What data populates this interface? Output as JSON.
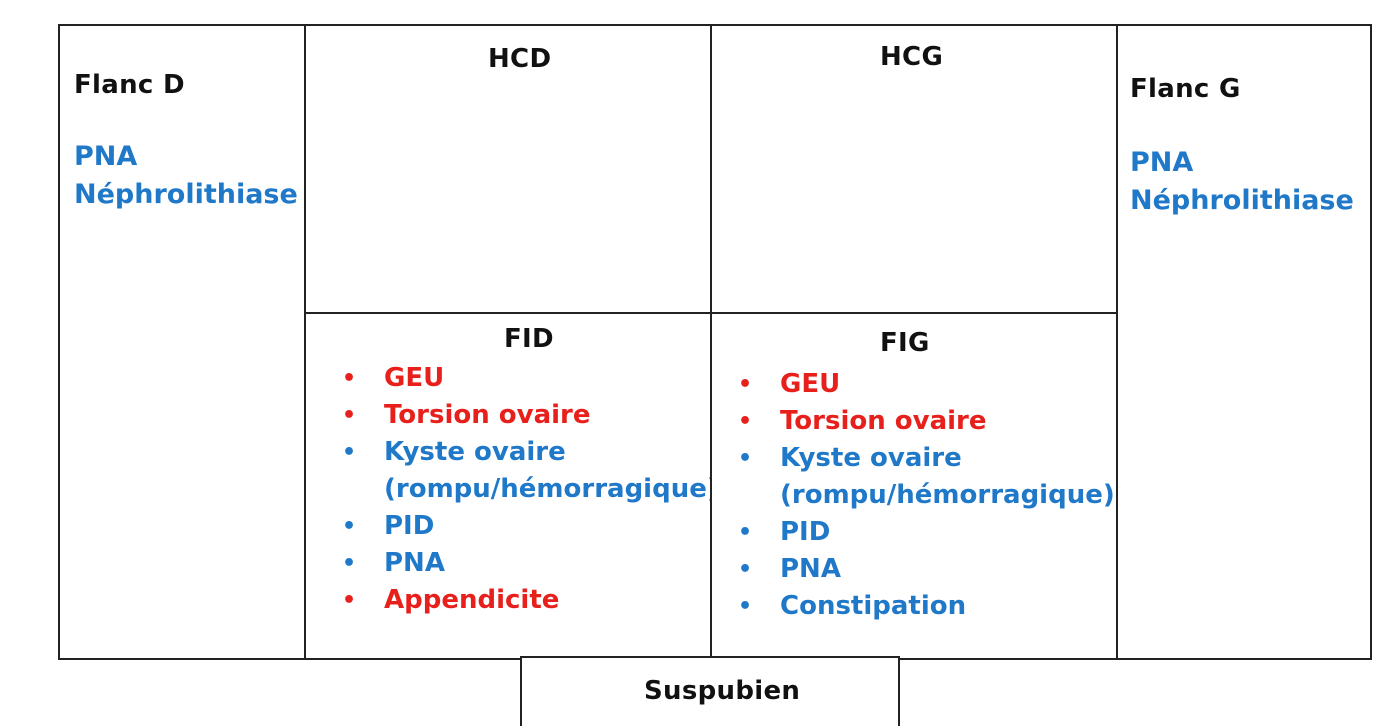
{
  "regions": {
    "flanc_d": {
      "title": "Flanc D",
      "items": [
        "PNA",
        "Néphrolithiase"
      ]
    },
    "hcd": {
      "title": "HCD"
    },
    "hcg": {
      "title": "HCG"
    },
    "flanc_g": {
      "title": "Flanc G",
      "items": [
        "PNA",
        "Néphrolithiase"
      ]
    },
    "fid": {
      "title": "FID",
      "items": [
        {
          "text": "GEU",
          "color": "#e8201c"
        },
        {
          "text": "Torsion ovaire",
          "color": "#e8201c"
        },
        {
          "text": "Kyste ovaire",
          "color": "#1f78c8"
        },
        {
          "text": "(rompu/hémorragique)",
          "color": "#1f78c8"
        },
        {
          "text": "PID",
          "color": "#1f78c8"
        },
        {
          "text": "PNA",
          "color": "#1f78c8"
        },
        {
          "text": "Appendicite",
          "color": "#e8201c"
        }
      ]
    },
    "fig": {
      "title": "FIG",
      "items": [
        {
          "text": "GEU",
          "color": "#e8201c"
        },
        {
          "text": "Torsion ovaire",
          "color": "#e8201c"
        },
        {
          "text": "Kyste ovaire",
          "color": "#1f78c8"
        },
        {
          "text": "(rompu/hémorragique)",
          "color": "#1f78c8"
        },
        {
          "text": "PID",
          "color": "#1f78c8"
        },
        {
          "text": "PNA",
          "color": "#1f78c8"
        },
        {
          "text": "Constipation",
          "color": "#1f78c8"
        }
      ]
    },
    "suspubien": {
      "title": "Suspubien"
    }
  },
  "bullet": "•"
}
